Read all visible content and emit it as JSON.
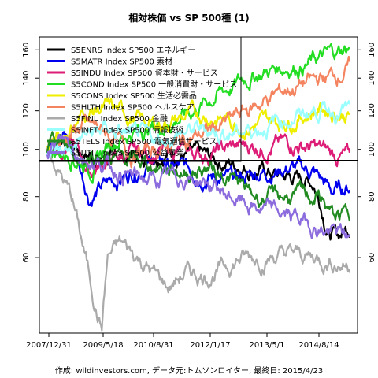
{
  "chart_data": {
    "type": "line",
    "title": "相対株価 vs SP 500種 (1)",
    "caption": "作成: wildinvestors.com, データ元:トムソンロイター, 最終日: 2015/4/23",
    "x_tick_labels": [
      "2007/12/31",
      "2009/5/18",
      "2010/8/31",
      "2012/1/17",
      "2013/5/1",
      "2014/8/14"
    ],
    "y_ticks": [
      60,
      80,
      100,
      120,
      140,
      160
    ],
    "y_log_scale": true,
    "ylim": [
      42,
      170
    ],
    "x_range": [
      "2007/12/31",
      "2015/4/23"
    ],
    "reference_line": 95,
    "legend_position": "top-left",
    "series": [
      {
        "name": "S5ENRS Index SP500 エネルギー",
        "color": "#000000",
        "points": [
          [
            0,
            100
          ],
          [
            0.06,
            107
          ],
          [
            0.12,
            98
          ],
          [
            0.2,
            96
          ],
          [
            0.3,
            97
          ],
          [
            0.38,
            100
          ],
          [
            0.45,
            98
          ],
          [
            0.55,
            95
          ],
          [
            0.65,
            93
          ],
          [
            0.72,
            90
          ],
          [
            0.78,
            88
          ],
          [
            0.84,
            87
          ],
          [
            0.88,
            86
          ],
          [
            0.9,
            80
          ],
          [
            0.93,
            68
          ],
          [
            0.96,
            66
          ],
          [
            1,
            70
          ]
        ]
      },
      {
        "name": "S5MATR Index SP500 素材",
        "color": "#0000ee",
        "points": [
          [
            0,
            100
          ],
          [
            0.05,
            110
          ],
          [
            0.1,
            95
          ],
          [
            0.14,
            80
          ],
          [
            0.2,
            85
          ],
          [
            0.28,
            90
          ],
          [
            0.35,
            96
          ],
          [
            0.42,
            92
          ],
          [
            0.5,
            90
          ],
          [
            0.56,
            88
          ],
          [
            0.62,
            86
          ],
          [
            0.7,
            90
          ],
          [
            0.8,
            92
          ],
          [
            0.88,
            90
          ],
          [
            0.94,
            82
          ],
          [
            1,
            84
          ]
        ]
      },
      {
        "name": "S5INDU Index SP500 資本財・サービス",
        "color": "#dd1c77",
        "points": [
          [
            0,
            100
          ],
          [
            0.08,
            103
          ],
          [
            0.14,
            90
          ],
          [
            0.2,
            95
          ],
          [
            0.3,
            98
          ],
          [
            0.42,
            99
          ],
          [
            0.52,
            98
          ],
          [
            0.62,
            101
          ],
          [
            0.72,
            102
          ],
          [
            0.82,
            103
          ],
          [
            0.9,
            100
          ],
          [
            0.96,
            97
          ],
          [
            1,
            96
          ]
        ]
      },
      {
        "name": "S5COND Index SP500 一般消費財・サービス",
        "color": "#22dd22",
        "points": [
          [
            0,
            100
          ],
          [
            0.08,
            98
          ],
          [
            0.15,
            92
          ],
          [
            0.22,
            105
          ],
          [
            0.3,
            110
          ],
          [
            0.38,
            112
          ],
          [
            0.48,
            120
          ],
          [
            0.58,
            132
          ],
          [
            0.68,
            142
          ],
          [
            0.78,
            148
          ],
          [
            0.86,
            150
          ],
          [
            0.93,
            156
          ],
          [
            1,
            162
          ]
        ]
      },
      {
        "name": "S5CONS Index SP500 生活必需品",
        "color": "#eeee00",
        "points": [
          [
            0,
            100
          ],
          [
            0.06,
            108
          ],
          [
            0.12,
            118
          ],
          [
            0.18,
            122
          ],
          [
            0.26,
            118
          ],
          [
            0.34,
            112
          ],
          [
            0.42,
            115
          ],
          [
            0.5,
            118
          ],
          [
            0.58,
            116
          ],
          [
            0.66,
            112
          ],
          [
            0.74,
            114
          ],
          [
            0.82,
            116
          ],
          [
            0.9,
            122
          ],
          [
            1,
            118
          ]
        ]
      },
      {
        "name": "S5HLTH Index SP500 ヘルスケア",
        "color": "#f4845f",
        "points": [
          [
            0,
            100
          ],
          [
            0.06,
            106
          ],
          [
            0.12,
            112
          ],
          [
            0.2,
            108
          ],
          [
            0.28,
            98
          ],
          [
            0.36,
            100
          ],
          [
            0.44,
            104
          ],
          [
            0.52,
            108
          ],
          [
            0.6,
            114
          ],
          [
            0.68,
            122
          ],
          [
            0.76,
            130
          ],
          [
            0.84,
            136
          ],
          [
            0.92,
            140
          ],
          [
            1,
            147
          ]
        ]
      },
      {
        "name": "S5FINL Index SP500 金融",
        "color": "#aaaaaa",
        "points": [
          [
            0,
            100
          ],
          [
            0.04,
            90
          ],
          [
            0.08,
            80
          ],
          [
            0.12,
            62
          ],
          [
            0.16,
            48
          ],
          [
            0.18,
            43
          ],
          [
            0.2,
            60
          ],
          [
            0.24,
            64
          ],
          [
            0.3,
            60
          ],
          [
            0.36,
            55
          ],
          [
            0.4,
            52
          ],
          [
            0.46,
            56
          ],
          [
            0.52,
            55
          ],
          [
            0.58,
            57
          ],
          [
            0.64,
            60
          ],
          [
            0.72,
            60
          ],
          [
            0.8,
            61
          ],
          [
            0.88,
            60
          ],
          [
            0.94,
            59
          ],
          [
            1,
            58
          ]
        ]
      },
      {
        "name": "S5INFT Index SP500 情報技術",
        "color": "#99ffff",
        "points": [
          [
            0,
            100
          ],
          [
            0.06,
            98
          ],
          [
            0.12,
            106
          ],
          [
            0.2,
            110
          ],
          [
            0.28,
            106
          ],
          [
            0.36,
            104
          ],
          [
            0.44,
            108
          ],
          [
            0.52,
            110
          ],
          [
            0.6,
            108
          ],
          [
            0.68,
            110
          ],
          [
            0.76,
            114
          ],
          [
            0.84,
            118
          ],
          [
            0.92,
            122
          ],
          [
            1,
            120
          ]
        ]
      },
      {
        "name": "S5TELS Index SP500 電気通信サービス",
        "color": "#228b22",
        "points": [
          [
            0,
            100
          ],
          [
            0.05,
            103
          ],
          [
            0.1,
            96
          ],
          [
            0.16,
            98
          ],
          [
            0.22,
            96
          ],
          [
            0.3,
            94
          ],
          [
            0.38,
            92
          ],
          [
            0.46,
            90
          ],
          [
            0.54,
            92
          ],
          [
            0.6,
            88
          ],
          [
            0.68,
            80
          ],
          [
            0.76,
            80
          ],
          [
            0.84,
            80
          ],
          [
            0.9,
            80
          ],
          [
            0.95,
            72
          ],
          [
            1,
            74
          ]
        ]
      },
      {
        "name": "S5UTIL Index SP500 公益事業",
        "color": "#8c6bdd",
        "points": [
          [
            0,
            100
          ],
          [
            0.06,
            104
          ],
          [
            0.12,
            97
          ],
          [
            0.2,
            92
          ],
          [
            0.28,
            88
          ],
          [
            0.36,
            86
          ],
          [
            0.44,
            88
          ],
          [
            0.52,
            86
          ],
          [
            0.6,
            80
          ],
          [
            0.68,
            76
          ],
          [
            0.76,
            74
          ],
          [
            0.84,
            72
          ],
          [
            0.92,
            68
          ],
          [
            1,
            66
          ]
        ]
      }
    ]
  }
}
